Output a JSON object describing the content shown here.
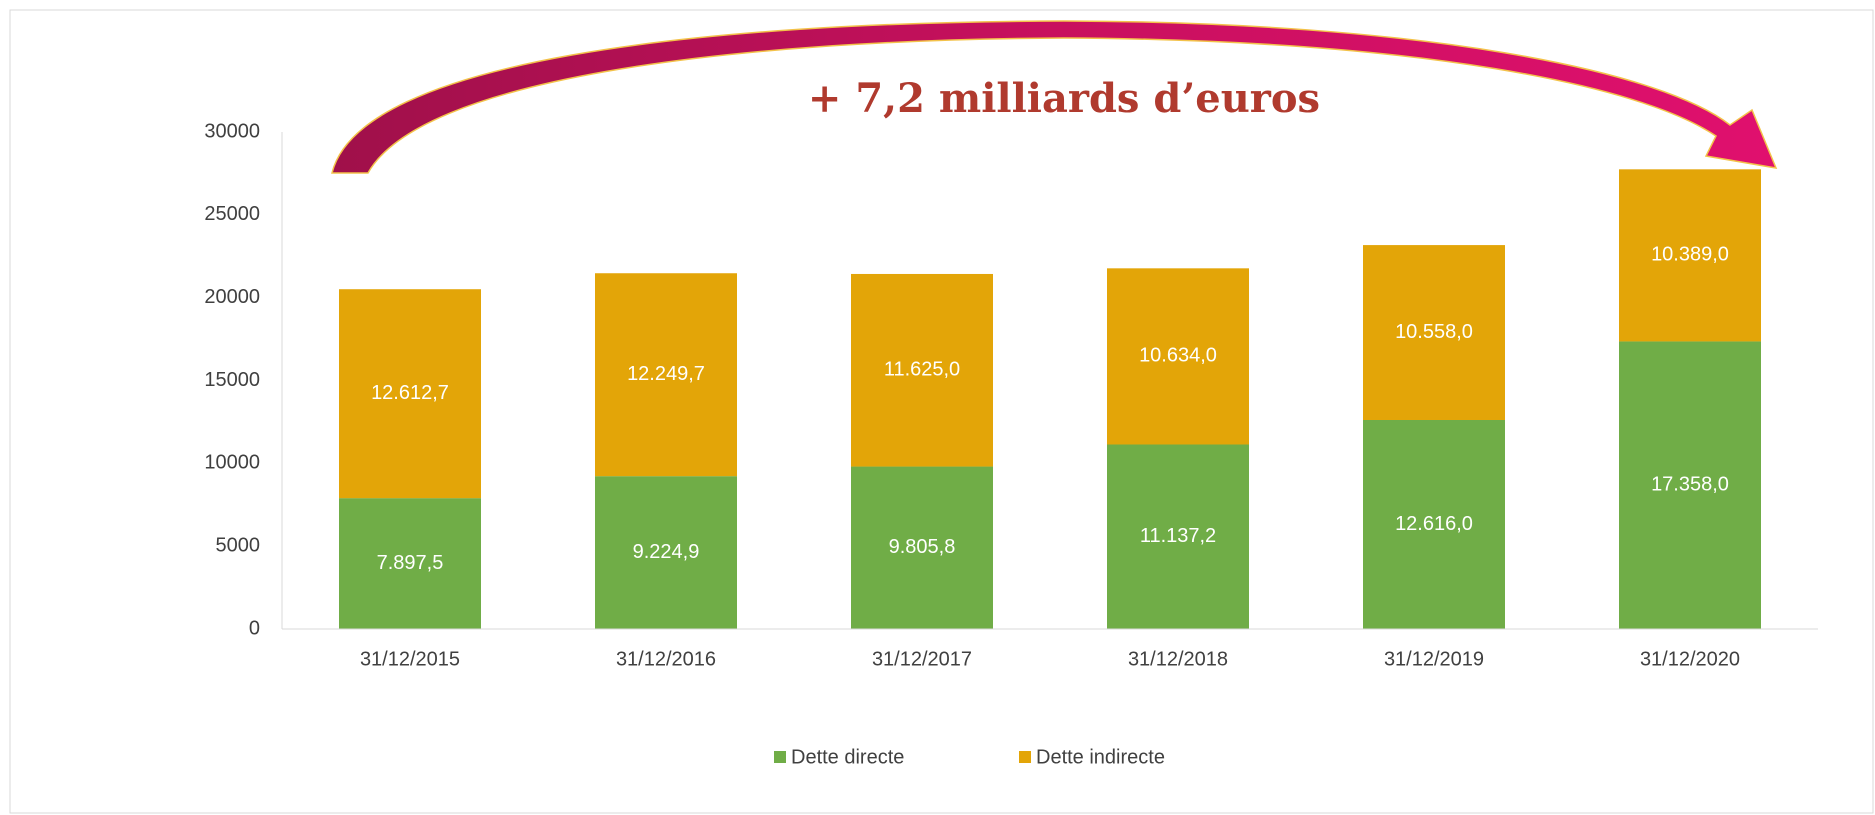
{
  "chart_data": {
    "type": "stacked_bar",
    "annotation": "+ 7,2 milliards d’euros",
    "categories": [
      "31/12/2015",
      "31/12/2016",
      "31/12/2017",
      "31/12/2018",
      "31/12/2019",
      "31/12/2020"
    ],
    "series": [
      {
        "name": "Dette directe",
        "color": "#70ad47",
        "values": [
          7897.5,
          9224.9,
          9805.8,
          11137.2,
          12616.0,
          17358.0
        ],
        "value_labels": [
          "7.897,5",
          "9.224,9",
          "9.805,8",
          "11.137,2",
          "12.616,0",
          "17.358,0"
        ]
      },
      {
        "name": "Dette indirecte",
        "color": "#e3a508",
        "values": [
          12612.7,
          12249.7,
          11625.0,
          10634.0,
          10558.0,
          10389.0
        ],
        "value_labels": [
          "12.612,7",
          "12.249,7",
          "11.625,0",
          "10.634,0",
          "10.558,0",
          "10.389,0"
        ]
      }
    ],
    "ylim": [
      0,
      30000
    ],
    "yticks": [
      0,
      5000,
      10000,
      15000,
      20000,
      25000,
      30000
    ],
    "grid": false,
    "legend": "bottom"
  }
}
